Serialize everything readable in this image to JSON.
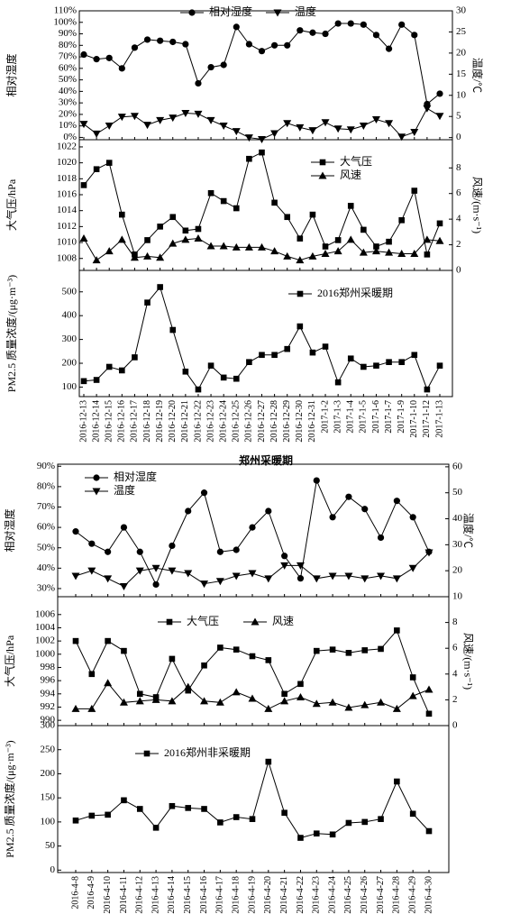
{
  "chart_data": [
    {
      "type": "line",
      "ylabel": "相对湿度",
      "y2label": "温度/℃",
      "ylim": [
        -2,
        110
      ],
      "yticks": [
        {
          "value": 0,
          "label": "0%"
        },
        {
          "value": 10,
          "label": "10%"
        },
        {
          "value": 20,
          "label": "20%"
        },
        {
          "value": 30,
          "label": "30%"
        },
        {
          "value": 40,
          "label": "40%"
        },
        {
          "value": 50,
          "label": "50%"
        },
        {
          "value": 60,
          "label": "60%"
        },
        {
          "value": 70,
          "label": "70%"
        },
        {
          "value": 80,
          "label": "80%"
        },
        {
          "value": 90,
          "label": "90%"
        },
        {
          "value": 100,
          "label": "100%"
        },
        {
          "value": 110,
          "label": "110%"
        }
      ],
      "y2lim": [
        -0.5,
        30
      ],
      "y2ticks": [
        0,
        5,
        10,
        15,
        20,
        25,
        30
      ],
      "series": [
        {
          "name": "相对湿度",
          "color": "#000000",
          "marker": "circle",
          "values": [
            72,
            68,
            69,
            60,
            78,
            85,
            84,
            83,
            81,
            47,
            61,
            63,
            96,
            81,
            75,
            80,
            80,
            93,
            91,
            90,
            99,
            99,
            98,
            89,
            77,
            98,
            89,
            29,
            38
          ]
        },
        {
          "name": "温度",
          "color": "#000000",
          "marker": "triangle-down",
          "axis": "y2",
          "values": [
            3.2,
            0.9,
            2.8,
            4.9,
            5.1,
            3,
            4.1,
            4.7,
            5.8,
            5.6,
            4.1,
            2.8,
            1.5,
            0,
            -0.4,
            1,
            3.4,
            2.4,
            1.7,
            3.6,
            2.1,
            1.9,
            2.8,
            4.3,
            3.4,
            0.2,
            1.3,
            6.9,
            5.1
          ]
        }
      ]
    },
    {
      "type": "line",
      "ylabel": "大气压/hPa",
      "y2label": "风速/(m·s⁻¹)",
      "ylim": [
        1006.5,
        1022.9
      ],
      "yticks": [
        1008,
        1010,
        1012,
        1014,
        1016,
        1018,
        1020,
        1022
      ],
      "y2lim": [
        0,
        10.2
      ],
      "y2ticks": [
        0,
        2,
        4,
        6,
        8
      ],
      "series": [
        {
          "name": "大气压",
          "color": "#000000",
          "marker": "square",
          "values": [
            1017.2,
            1019.2,
            1020,
            1013.5,
            1008.5,
            1010.3,
            1012,
            1013.2,
            1011.5,
            1011.7,
            1016.2,
            1015.2,
            1014.3,
            1020.5,
            1021.3,
            1015,
            1013.2,
            1010.5,
            1013.5,
            1009.5,
            1010.3,
            1014.6,
            1011.6,
            1009.5,
            1010.1,
            1012.8,
            1016.5,
            1008.5,
            1012.4
          ]
        },
        {
          "name": "风速",
          "color": "#000000",
          "marker": "triangle-up",
          "axis": "y2",
          "values": [
            2.5,
            0.8,
            1.5,
            2.4,
            1.0,
            1.1,
            1.0,
            2.1,
            2.4,
            2.5,
            1.9,
            1.9,
            1.8,
            1.8,
            1.8,
            1.5,
            1.1,
            0.8,
            1.1,
            1.3,
            1.5,
            2.4,
            1.4,
            1.5,
            1.4,
            1.3,
            1.3,
            2.4,
            2.3
          ]
        }
      ]
    },
    {
      "type": "line",
      "ylabel": "PM2.5 质量浓度/(μg·m⁻³)",
      "xlabel": "郑州采暖期",
      "categories": [
        "2016-12-13",
        "2016-12-14",
        "2016-12-15",
        "2016-12-16",
        "2016-12-17",
        "2016-12-18",
        "2016-12-19",
        "2016-12-20",
        "2016-12-21",
        "2016-12-22",
        "2016-12-23",
        "2016-12-24",
        "2016-12-25",
        "2016-12-26",
        "2016-12-27",
        "2016-12-28",
        "2016-12-29",
        "2016-12-30",
        "2016-12-31",
        "2017-1-2",
        "2017-1-3",
        "2017-1-4",
        "2017-1-5",
        "2017-1-6",
        "2017-1-7",
        "2017-1-9",
        "2017-1-10",
        "2017-1-12",
        "2017-1-13"
      ],
      "ylim": [
        60,
        590
      ],
      "yticks": [
        100,
        200,
        300,
        400,
        500
      ],
      "series": [
        {
          "name": "2016郑州采暖期",
          "color": "#000000",
          "marker": "square",
          "values": [
            125,
            130,
            185,
            170,
            225,
            455,
            520,
            340,
            165,
            90,
            190,
            140,
            135,
            205,
            235,
            235,
            260,
            355,
            245,
            270,
            120,
            220,
            185,
            190,
            205,
            205,
            235,
            90,
            190
          ]
        }
      ]
    },
    {
      "type": "line",
      "ylabel": "相对湿度",
      "y2label": "温度/℃",
      "ylim": [
        26,
        91
      ],
      "yticks": [
        {
          "value": 30,
          "label": "30%"
        },
        {
          "value": 40,
          "label": "40%"
        },
        {
          "value": 50,
          "label": "50%"
        },
        {
          "value": 60,
          "label": "60%"
        },
        {
          "value": 70,
          "label": "70%"
        },
        {
          "value": 80,
          "label": "80%"
        },
        {
          "value": 90,
          "label": "90%"
        }
      ],
      "y2lim": [
        10,
        61
      ],
      "y2ticks": [
        10,
        20,
        30,
        40,
        50,
        60
      ],
      "series": [
        {
          "name": "相对湿度",
          "color": "#000000",
          "marker": "circle",
          "values": [
            58,
            52,
            48,
            60,
            48,
            32,
            51,
            68,
            77,
            48,
            49,
            60,
            68,
            46,
            35,
            83,
            65,
            75,
            69,
            55,
            73,
            65,
            48
          ]
        },
        {
          "name": "温度",
          "color": "#000000",
          "marker": "triangle-down",
          "axis": "y2",
          "values": [
            18,
            20,
            17,
            14,
            20,
            21,
            20,
            19,
            15,
            16,
            18,
            19,
            17,
            22,
            22,
            17,
            18,
            18,
            17,
            18,
            17,
            21,
            27
          ]
        }
      ]
    },
    {
      "type": "line",
      "ylabel": "大气压/hPa",
      "y2label": "风速/(m·s⁻¹)",
      "ylim": [
        989.2,
        1008.7
      ],
      "yticks": [
        990,
        992,
        994,
        996,
        998,
        1000,
        1002,
        1004,
        1006
      ],
      "y2lim": [
        0,
        10
      ],
      "y2ticks": [
        0,
        2,
        4,
        6,
        8
      ],
      "series": [
        {
          "name": "大气压",
          "color": "#000000",
          "marker": "square",
          "values": [
            1002,
            997,
            1002,
            1000.5,
            994,
            993.5,
            999.3,
            994.5,
            998.3,
            1001,
            1000.7,
            999.7,
            999.1,
            994,
            995.5,
            1000.5,
            1000.7,
            1000.2,
            1000.6,
            1000.8,
            1003.6,
            996.5,
            991
          ]
        },
        {
          "name": "风速",
          "color": "#000000",
          "marker": "triangle-up",
          "axis": "y2",
          "values": [
            1.3,
            1.3,
            3.3,
            1.8,
            1.9,
            2.0,
            1.9,
            3.0,
            1.9,
            1.8,
            2.6,
            2.1,
            1.3,
            1.9,
            2.2,
            1.7,
            1.8,
            1.4,
            1.6,
            1.8,
            1.3,
            2.3,
            2.8
          ]
        }
      ]
    },
    {
      "type": "line",
      "ylabel": "PM2.5 质量浓度/(μg·m⁻³)",
      "xlabel": "郑州非采暖期",
      "categories": [
        "2016-4-8",
        "2016-4-9",
        "2016-4-10",
        "2016-4-11",
        "2016-4-12",
        "2016-4-13",
        "2016-4-14",
        "2016-4-15",
        "2016-4-16",
        "2016-4-17",
        "2016-4-18",
        "2016-4-19",
        "2016-4-20",
        "2016-4-21",
        "2016-4-22",
        "2016-4-23",
        "2016-4-24",
        "2016-4-25",
        "2016-4-26",
        "2016-4-27",
        "2016-4-28",
        "2016-4-29",
        "2016-4-30"
      ],
      "ylim": [
        -5,
        300
      ],
      "yticks": [
        0,
        50,
        100,
        150,
        200,
        250,
        300
      ],
      "series": [
        {
          "name": "2016郑州非采暖期",
          "color": "#000000",
          "marker": "square",
          "values": [
            103,
            113,
            115,
            145,
            127,
            88,
            133,
            129,
            127,
            99,
            110,
            106,
            225,
            119,
            67,
            76,
            74,
            98,
            100,
            106,
            184,
            117,
            81
          ]
        }
      ]
    }
  ]
}
